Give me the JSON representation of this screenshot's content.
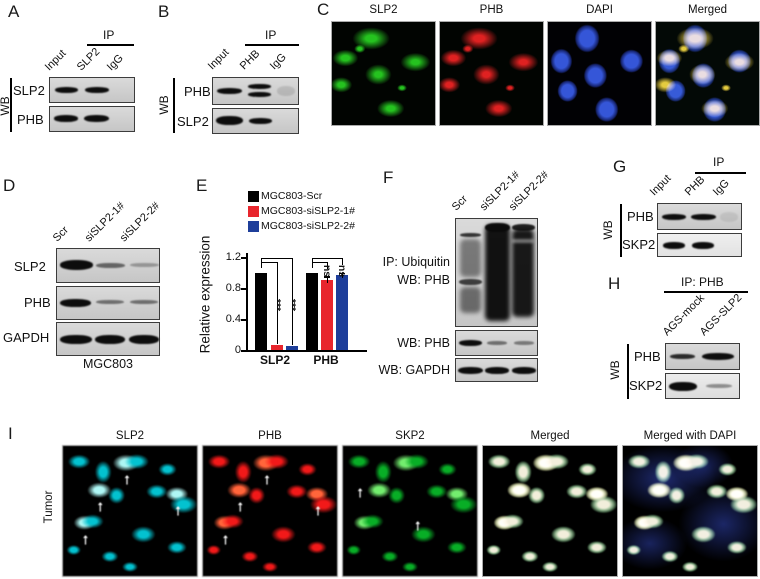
{
  "panels": {
    "a": {
      "label": "A",
      "ip": "IP",
      "wb": "WB",
      "lanes": [
        "Input",
        "SLP2",
        "IgG"
      ],
      "rows": [
        "SLP2",
        "PHB"
      ]
    },
    "b": {
      "label": "B",
      "ip": "IP",
      "wb": "WB",
      "lanes": [
        "Input",
        "PHB",
        "IgG"
      ],
      "rows": [
        "PHB",
        "SLP2"
      ]
    },
    "c": {
      "label": "C",
      "image_labels": [
        "SLP2",
        "PHB",
        "DAPI",
        "Merged"
      ]
    },
    "d": {
      "label": "D",
      "lanes": [
        "Scr",
        "siSLP2-1#",
        "siSLP2-2#"
      ],
      "rows": [
        "SLP2",
        "PHB",
        "GAPDH"
      ],
      "cell_line": "MGC803"
    },
    "e": {
      "label": "E"
    },
    "f": {
      "label": "F",
      "lanes": [
        "Scr",
        "siSLP2-1#",
        "siSLP2-2#"
      ],
      "blot1_line1": "IP: Ubiquitin",
      "blot1_line2": "WB: PHB",
      "blot2_label": "WB: PHB",
      "blot3_label": "WB: GAPDH"
    },
    "g": {
      "label": "G",
      "ip": "IP",
      "wb": "WB",
      "lanes": [
        "Input",
        "PHB",
        "IgG"
      ],
      "rows": [
        "PHB",
        "SKP2"
      ]
    },
    "h": {
      "label": "H",
      "ip": "IP: PHB",
      "wb": "WB",
      "lanes": [
        "AGS-mock",
        "AGS-SLP2"
      ],
      "rows": [
        "PHB",
        "SKP2"
      ]
    },
    "i": {
      "label": "I",
      "side_label": "Tumor",
      "image_labels": [
        "SLP2",
        "PHB",
        "SKP2",
        "Merged",
        "Merged with DAPI"
      ],
      "arrow_glyph": "↑"
    }
  },
  "channels": {
    "green": {
      "c": "#25c31f",
      "hi": "#9bef5a"
    },
    "red": {
      "c": "#df2121",
      "hi": "#ff7a4a"
    },
    "dapi": {
      "c": "#3556d8",
      "hi": "#7f95e8"
    },
    "cyan": {
      "c": "#17bdc9",
      "hi": "#b5f4f2"
    },
    "tred": {
      "c": "#dc1f1f",
      "hi": "#ff6a45"
    },
    "tgreen": {
      "c": "#18a832",
      "hi": "#7ee87a"
    }
  },
  "chart_data": {
    "type": "bar",
    "categories": [
      "SLP2",
      "PHB"
    ],
    "series": [
      {
        "name": "MGC803-Scr",
        "color": "#000000",
        "values": [
          1.0,
          1.0
        ],
        "errors": [
          0,
          0
        ]
      },
      {
        "name": "MGC803-siSLP2-1#",
        "color": "#e8262d",
        "values": [
          0.06,
          0.9
        ],
        "errors": [
          0,
          0.05
        ]
      },
      {
        "name": "MGC803-siSLP2-2#",
        "color": "#1e3e9a",
        "values": [
          0.05,
          0.97
        ],
        "errors": [
          0,
          0.03
        ]
      }
    ],
    "xlabel": "",
    "ylabel": "Relative expression",
    "ylim": [
      0,
      1.2
    ],
    "yticks": [
      0,
      0.4,
      0.8,
      1.2
    ],
    "grid": false,
    "legend_position": "top",
    "annotations": [
      {
        "group": "SLP2",
        "comparison": "Scr vs siSLP2-1#",
        "label": "***"
      },
      {
        "group": "SLP2",
        "comparison": "Scr vs siSLP2-2#",
        "label": "***"
      },
      {
        "group": "PHB",
        "comparison": "Scr vs siSLP2-1#",
        "label": "ns"
      },
      {
        "group": "PHB",
        "comparison": "Scr vs siSLP2-2#",
        "label": "ns"
      }
    ]
  }
}
